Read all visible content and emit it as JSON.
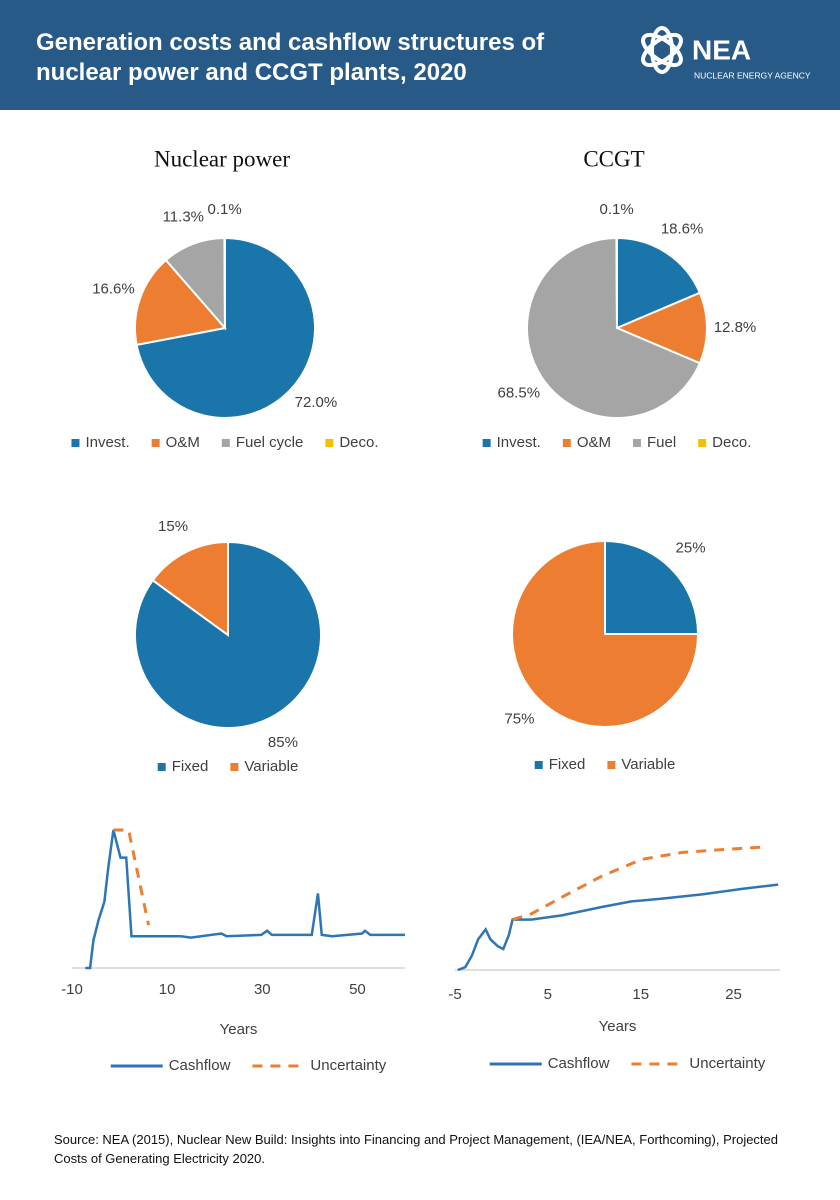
{
  "header": {
    "title": "Generation costs and cashflow structures of nuclear power and CCGT plants, 2020",
    "logo": "NEA",
    "agency": "NUCLEAR ENERGY AGENCY"
  },
  "columns": [
    "Nuclear power",
    "CCGT"
  ],
  "chart_data": [
    {
      "type": "pie",
      "categories": [
        "Invest.",
        "O&M",
        "Fuel cycle",
        "Deco."
      ],
      "values": [
        72.0,
        16.6,
        11.3,
        0.1
      ],
      "value_labels": [
        "72.0%",
        "16.6%",
        "11.3%",
        "0.1%"
      ],
      "colors": [
        "#1a75aa",
        "#ed7d31",
        "#a5a5a5",
        "#f5c000"
      ]
    },
    {
      "type": "pie",
      "categories": [
        "Invest.",
        "O&M",
        "Fuel",
        "Deco."
      ],
      "values": [
        18.6,
        12.8,
        68.5,
        0.1
      ],
      "value_labels": [
        "18.6%",
        "12.8%",
        "68.5%",
        "0.1%"
      ],
      "colors": [
        "#1a75aa",
        "#ed7d31",
        "#a5a5a5",
        "#f5c000"
      ]
    },
    {
      "type": "pie",
      "categories": [
        "Fixed",
        "Variable"
      ],
      "values": [
        85,
        15
      ],
      "value_labels": [
        "85%",
        "15%"
      ],
      "colors": [
        "#1a75aa",
        "#ed7d31"
      ]
    },
    {
      "type": "pie",
      "categories": [
        "Fixed",
        "Variable"
      ],
      "values": [
        25,
        75
      ],
      "value_labels": [
        "25%",
        "75%"
      ],
      "colors": [
        "#1a75aa",
        "#ed7d31"
      ]
    },
    {
      "type": "line",
      "x_label": "Years",
      "xlim": [
        -10,
        60
      ],
      "xticks": [
        -10,
        10,
        30,
        50
      ],
      "ylim": [
        0,
        100
      ],
      "series": [
        {
          "name": "Cashflow",
          "color": "#2f75b5",
          "dashed": false,
          "x": [
            -7.2,
            -6.2,
            -5.5,
            -4.4,
            -3.2,
            -2.4,
            -1.3,
            0.2,
            1.4,
            2.5,
            3.3,
            12.9,
            15,
            21.4,
            22.5,
            29.8,
            31,
            32,
            40.4,
            41.7,
            42.5,
            44.7,
            51,
            51.6,
            52.7,
            60
          ],
          "values": [
            0,
            0,
            20,
            35,
            48,
            72,
            100,
            80,
            80,
            23,
            23,
            23,
            22,
            25,
            23,
            24,
            27,
            24,
            24,
            54,
            24,
            23,
            25,
            27,
            24,
            24
          ]
        },
        {
          "name": "Uncertainty",
          "color": "#ed7d31",
          "dashed": true,
          "x": [
            -1.3,
            1.9,
            6.1
          ],
          "values": [
            100,
            100,
            31
          ]
        }
      ]
    },
    {
      "type": "line",
      "x_label": "Years",
      "xlim": [
        -5,
        30
      ],
      "xticks": [
        -5,
        5,
        15,
        25
      ],
      "ylim": [
        0,
        100
      ],
      "series": [
        {
          "name": "Cashflow",
          "color": "#2f75b5",
          "dashed": false,
          "x": [
            -4.7,
            -3.9,
            -3.2,
            -2.5,
            -1.7,
            -1.2,
            -0.4,
            0.2,
            0.8,
            1.2,
            3.2,
            6.5,
            10.8,
            14,
            17.3,
            21.6,
            26,
            29.8
          ],
          "values": [
            0,
            2,
            10,
            22,
            29,
            22,
            17,
            15,
            25,
            36,
            36,
            39,
            45,
            49,
            51,
            54,
            58,
            61
          ]
        },
        {
          "name": "Uncertainty",
          "color": "#ed7d31",
          "dashed": true,
          "x": [
            1.2,
            3.2,
            6.5,
            10.8,
            15.1,
            19.5,
            23.8,
            28.7
          ],
          "values": [
            36,
            40,
            52,
            67,
            79,
            84,
            86,
            88
          ]
        }
      ]
    }
  ],
  "source": "Source: NEA (2015), Nuclear New Build: Insights into Financing and Project Management, (IEA/NEA, Forthcoming), Projected Costs of Generating Electricity 2020."
}
